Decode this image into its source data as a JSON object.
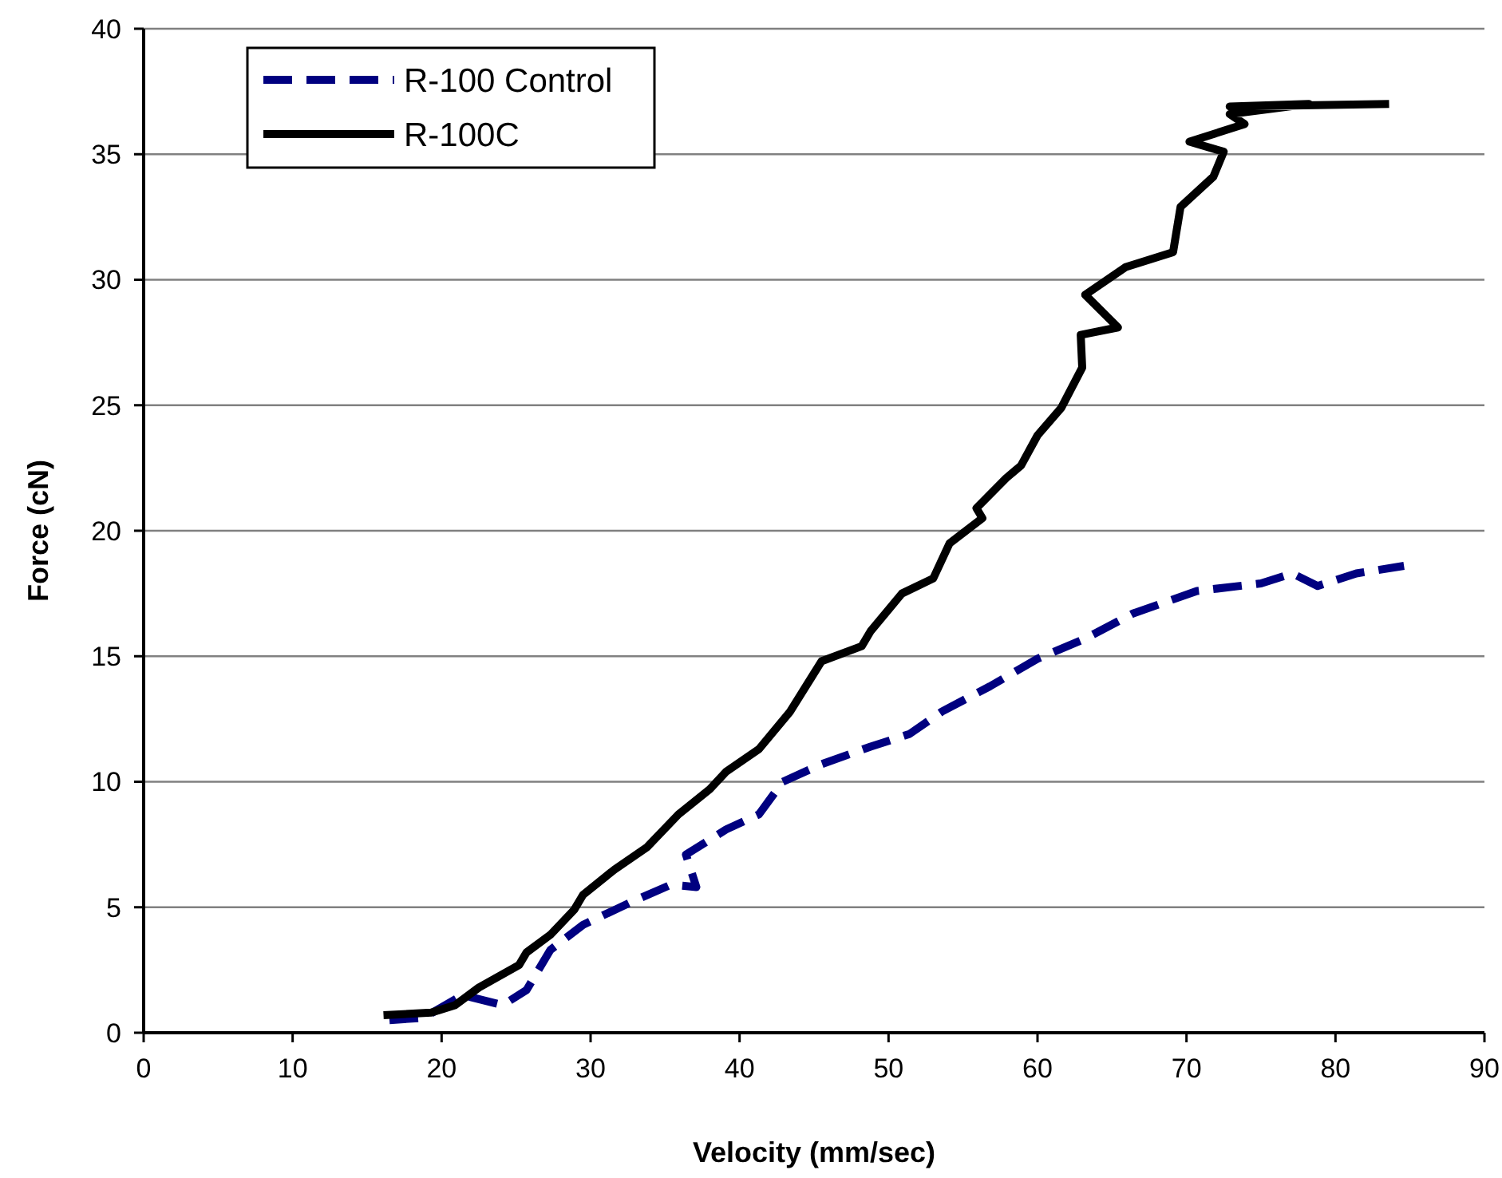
{
  "chart_data": {
    "type": "line",
    "xlabel": "Velocity (mm/sec)",
    "ylabel": "Force (cN)",
    "xlim": [
      0,
      90
    ],
    "xticks": [
      0,
      10,
      20,
      30,
      40,
      50,
      60,
      70,
      80,
      90
    ],
    "ylim": [
      0,
      40
    ],
    "yticks": [
      0,
      5,
      10,
      15,
      20,
      25,
      30,
      35,
      40
    ],
    "grid": "y",
    "legend": "top left",
    "marker": "none",
    "series": [
      {
        "name": "R-100 Control",
        "color": "#000080",
        "line_style": "dashed",
        "x": [
          16.5,
          18.8,
          21.4,
          24.1,
          25.7,
          27.3,
          29.5,
          32.7,
          35.4,
          37.1,
          36.4,
          39.1,
          41.3,
          42.9,
          45.5,
          48.8,
          51.4,
          53.6,
          56.8,
          60.0,
          63.2,
          66.4,
          70.7,
          75.0,
          77.1,
          78.8,
          81.4,
          84.6
        ],
        "values": [
          0.5,
          0.6,
          1.5,
          1.1,
          1.7,
          3.3,
          4.3,
          5.2,
          5.9,
          5.8,
          7.1,
          8.1,
          8.7,
          10.0,
          10.7,
          11.4,
          11.9,
          12.8,
          13.8,
          14.9,
          15.7,
          16.7,
          17.6,
          17.9,
          18.3,
          17.8,
          18.3,
          18.6
        ]
      },
      {
        "name": "R-100C",
        "color": "#000000",
        "line_style": "solid",
        "x": [
          16.1,
          19.3,
          20.9,
          22.5,
          25.2,
          25.7,
          27.3,
          28.9,
          29.5,
          31.6,
          33.8,
          35.9,
          38.0,
          39.1,
          41.3,
          43.4,
          45.5,
          48.2,
          48.8,
          50.9,
          53.0,
          54.1,
          56.3,
          55.9,
          57.9,
          58.9,
          60.0,
          61.6,
          63.0,
          62.9,
          65.4,
          63.2,
          65.9,
          69.1,
          69.6,
          71.8,
          72.5,
          70.2,
          73.9,
          72.9,
          78.2,
          72.9,
          83.6
        ],
        "values": [
          0.7,
          0.8,
          1.1,
          1.8,
          2.7,
          3.2,
          3.9,
          4.9,
          5.5,
          6.5,
          7.4,
          8.7,
          9.7,
          10.4,
          11.3,
          12.8,
          14.8,
          15.4,
          16.0,
          17.5,
          18.1,
          19.5,
          20.5,
          20.9,
          22.1,
          22.6,
          23.8,
          24.9,
          26.5,
          27.8,
          28.1,
          29.4,
          30.5,
          31.1,
          32.9,
          34.1,
          35.1,
          35.5,
          36.2,
          36.6,
          37.0,
          36.9,
          37.0
        ]
      }
    ]
  }
}
